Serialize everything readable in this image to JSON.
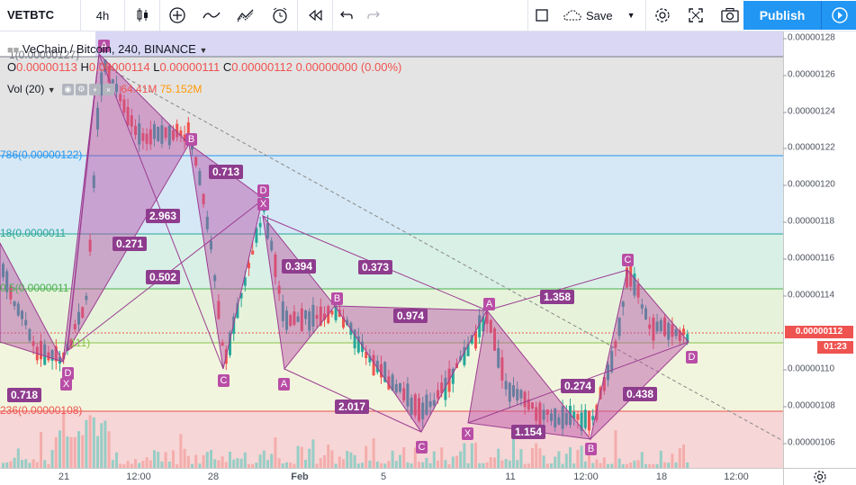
{
  "toolbar": {
    "symbol": "VETBTC",
    "interval": "4h",
    "save_label": "Save",
    "publish_label": "Publish"
  },
  "legend": {
    "title": "VeChain / Bitcoin, 240, BINANCE",
    "open_key": "O",
    "open": "0.00000113",
    "high_key": "H",
    "high": "0.00000114",
    "low_key": "L",
    "low": "0.00000111",
    "close_key": "C",
    "close": "0.00000112",
    "change": "0.00000000 (0.00%)",
    "vol_title": "Vol (20)",
    "vol_value_1": "64.41M",
    "vol_value_2": "75.152M"
  },
  "fib_levels": [
    {
      "label": "1(0.00000127)",
      "color": "#787b86"
    },
    {
      "label": "786(0.00000122)",
      "color": "#2196f3"
    },
    {
      "label": "18(0.0000011",
      "color": "#26a69a"
    },
    {
      "label": "0.5(0.0000011",
      "color": "#4caf50"
    },
    {
      "label": "111)",
      "color": "#8bc34a"
    },
    {
      "label": "236(0.00000108)",
      "color": "#ef5350"
    }
  ],
  "ratios": [
    "0.713",
    "2.963",
    "0.271",
    "0.502",
    "0.394",
    "0.373",
    "0.974",
    "1.358",
    "2.017",
    "1.154",
    "0.274",
    "0.438",
    "0.718"
  ],
  "points": [
    "A",
    "B",
    "C",
    "D",
    "X",
    "A",
    "B",
    "C",
    "D",
    "X",
    "A",
    "B",
    "C",
    "D",
    "X",
    "D"
  ],
  "price_axis": {
    "ticks": [
      "0.00000128",
      "0.00000126",
      "0.00000124",
      "0.00000122",
      "0.00000120",
      "0.00000118",
      "0.00000116",
      "0.00000114",
      "0.00000110",
      "0.00000108",
      "0.00000106"
    ],
    "last_price": "0.00000112",
    "countdown": "01:23"
  },
  "time_axis": {
    "ticks": [
      "21",
      "12:00",
      "28",
      "Feb",
      "5",
      "11",
      "12:00",
      "18",
      "12:00"
    ]
  },
  "colors": {
    "up": "#26a69a",
    "down": "#ef5350",
    "pattern_fill": "#b84da6",
    "publish": "#2196f3"
  }
}
